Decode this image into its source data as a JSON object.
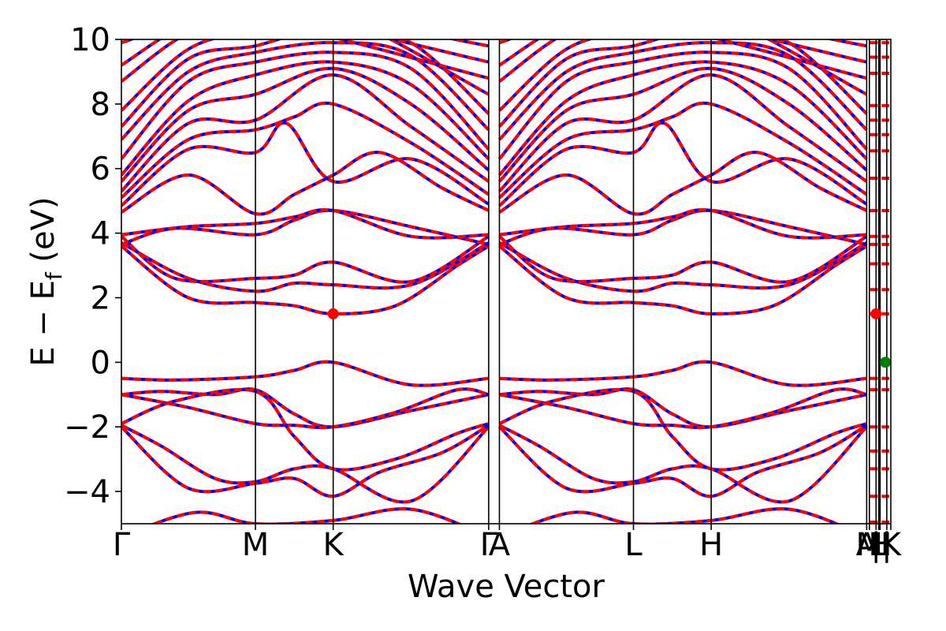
{
  "chart_data": {
    "type": "line",
    "title": "",
    "xlabel": "Wave Vector",
    "ylabel_main": "E − E",
    "ylabel_sub": "f",
    "ylabel_unit": " (eV)",
    "ylim": [
      -5,
      10
    ],
    "y_ticks": [
      {
        "value": -4,
        "label": "−4"
      },
      {
        "value": -2,
        "label": "−2"
      },
      {
        "value": 0,
        "label": "0"
      },
      {
        "value": 2,
        "label": "2"
      },
      {
        "value": 4,
        "label": "4"
      },
      {
        "value": 6,
        "label": "6"
      },
      {
        "value": 8,
        "label": "8"
      },
      {
        "value": 10,
        "label": "10"
      }
    ],
    "k_path": [
      {
        "label": "Γ",
        "position": 0.0
      },
      {
        "label": "M",
        "position": 1.0
      },
      {
        "label": "K",
        "position": 1.58
      },
      {
        "label": "Γ",
        "position": 2.74
      },
      {
        "label": "A",
        "position": 2.82
      },
      {
        "label": "L",
        "position": 3.82
      },
      {
        "label": "H",
        "position": 4.4
      },
      {
        "label": "A",
        "position": 5.56
      },
      {
        "label": "M",
        "position": 5.58
      },
      {
        "label": "|",
        "position": 5.63
      },
      {
        "label": "L",
        "position": 5.65
      },
      {
        "label": "H",
        "position": 5.66
      },
      {
        "label": "|",
        "position": 5.71
      },
      {
        "label": "K",
        "position": 5.74
      }
    ],
    "x_range": [
      0.0,
      5.74
    ],
    "series": [
      {
        "color": "#0000ff",
        "style": "solid"
      },
      {
        "color": "#ff0000",
        "style": "dashed"
      }
    ],
    "markers": [
      {
        "x": 1.58,
        "y": 1.5,
        "color": "#ff0000"
      },
      {
        "x": 5.63,
        "y": 1.5,
        "color": "#ff0000"
      },
      {
        "x": 5.7,
        "y": 0.0,
        "color": "#008000"
      }
    ],
    "vbm_energy": 0.0,
    "cbm_energy": 1.5
  }
}
